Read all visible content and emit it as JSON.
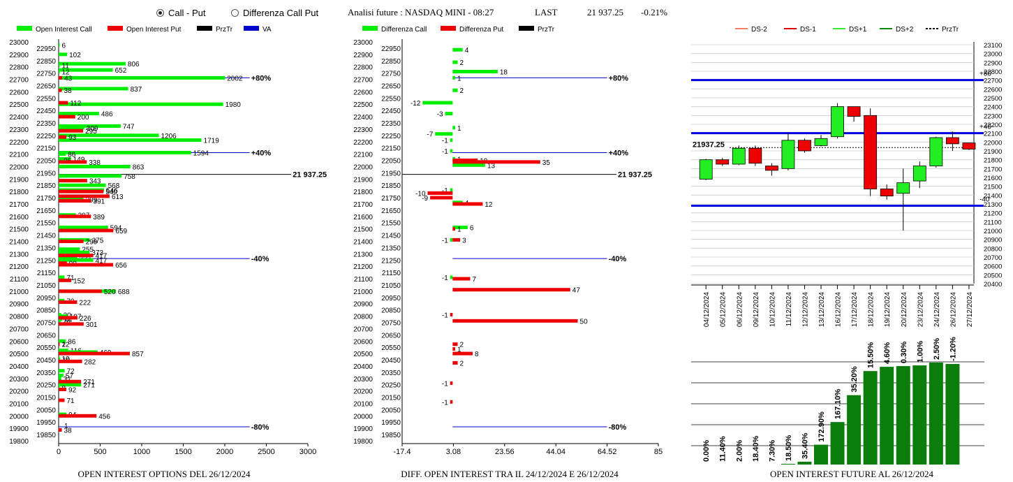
{
  "header": {
    "radio_call_put": "Call - Put",
    "radio_diff": "Differenza Call Put",
    "title": "Analisi future : NASDAQ MINI - 08:27",
    "last_label": "LAST",
    "last_value": "21 937.25",
    "change": "-0.21%"
  },
  "captions": {
    "left": "OPEN INTEREST OPTIONS DEL 26/12/2024",
    "middle": "DIFF. OPEN INTEREST TRA IL 24/12/2024 E 26/12/2024",
    "right": "OPEN INTEREST FUTURE AL 26/12/2024"
  },
  "colors": {
    "green": "#00ee00",
    "red": "#ee0000",
    "blue": "#0000cc",
    "darkgreen": "#0b7d0b"
  },
  "chart_data": [
    {
      "type": "bar",
      "orientation": "horizontal",
      "legend": [
        "Open Interest Call",
        "Open Interest Put",
        "PrzTr",
        "VA"
      ],
      "yticks": [
        "23000",
        "22900",
        "22800",
        "22700",
        "22600",
        "22500",
        "22400",
        "22300",
        "22200",
        "22100",
        "22000",
        "21900",
        "21800",
        "21700",
        "21600",
        "21500",
        "21400",
        "21300",
        "21200",
        "21100",
        "21000",
        "20900",
        "20800",
        "20700",
        "20600",
        "20500",
        "20400",
        "20300",
        "20200",
        "20100",
        "20000",
        "19900",
        "19800"
      ],
      "ylabels_mid": [
        "22950",
        "22850",
        "22750",
        "22650",
        "22550",
        "22450",
        "22350",
        "22250",
        "22150",
        "22050",
        "21950",
        "21850",
        "21750",
        "21650",
        "21550",
        "21450",
        "21350",
        "21250",
        "21150",
        "21050",
        "20950",
        "20850",
        "20750",
        "20650",
        "20550",
        "20450",
        "20350",
        "20250",
        "20150",
        "20050",
        "19950",
        "19850"
      ],
      "xticks": [
        "0",
        "500",
        "1000",
        "1500",
        "2000",
        "2500",
        "3000"
      ],
      "xlim": [
        0,
        3000
      ],
      "calls": [
        [
          22975,
          6
        ],
        [
          22900,
          102
        ],
        [
          22825,
          806
        ],
        [
          22812,
          11
        ],
        [
          22775,
          652
        ],
        [
          22762,
          12
        ],
        [
          22712,
          2002
        ],
        [
          22625,
          837
        ],
        [
          22500,
          1980
        ],
        [
          22425,
          486
        ],
        [
          22325,
          747
        ],
        [
          22312,
          309
        ],
        [
          22250,
          1206
        ],
        [
          22212,
          1719
        ],
        [
          22112,
          1594
        ],
        [
          22100,
          86
        ],
        [
          22062,
          149
        ],
        [
          22050,
          35
        ],
        [
          22000,
          863
        ],
        [
          21925,
          758
        ],
        [
          21850,
          568
        ],
        [
          21812,
          546
        ],
        [
          21737,
          299
        ],
        [
          21612,
          207
        ],
        [
          21512,
          594
        ],
        [
          21412,
          375
        ],
        [
          21337,
          255
        ],
        [
          21312,
          373
        ],
        [
          21262,
          222
        ],
        [
          21250,
          417
        ],
        [
          21112,
          71
        ],
        [
          21000,
          688
        ],
        [
          20925,
          70
        ],
        [
          20812,
          30
        ],
        [
          20800,
          107
        ],
        [
          20775,
          44
        ],
        [
          20762,
          24
        ],
        [
          20600,
          86
        ],
        [
          20575,
          2
        ],
        [
          20525,
          116
        ],
        [
          20512,
          469
        ],
        [
          20462,
          10
        ],
        [
          20450,
          18
        ],
        [
          20362,
          72
        ],
        [
          20325,
          57
        ],
        [
          20300,
          31
        ],
        [
          20262,
          6
        ],
        [
          20250,
          271
        ],
        [
          20225,
          8
        ],
        [
          20012,
          94
        ]
      ],
      "puts": [
        [
          22712,
          43
        ],
        [
          22612,
          38
        ],
        [
          22512,
          112
        ],
        [
          22400,
          200
        ],
        [
          22287,
          295
        ],
        [
          22237,
          93
        ],
        [
          22037,
          338
        ],
        [
          21887,
          343
        ],
        [
          21800,
          540
        ],
        [
          21762,
          613
        ],
        [
          21725,
          391
        ],
        [
          21600,
          389
        ],
        [
          21487,
          659
        ],
        [
          21400,
          299
        ],
        [
          21287,
          417
        ],
        [
          21225,
          99
        ],
        [
          21212,
          656
        ],
        [
          21087,
          152
        ],
        [
          21000,
          520
        ],
        [
          20912,
          222
        ],
        [
          20787,
          226
        ],
        [
          20737,
          301
        ],
        [
          20575,
          12
        ],
        [
          20500,
          857
        ],
        [
          20437,
          282
        ],
        [
          20275,
          271
        ],
        [
          20212,
          92
        ],
        [
          20125,
          71
        ],
        [
          20000,
          456
        ],
        [
          19887,
          38
        ]
      ],
      "lines": [
        {
          "y": 22712,
          "label": "+80%",
          "x": 2300
        },
        {
          "y": 22112,
          "label": "+40%",
          "x": 2300
        },
        {
          "y": 21937.25,
          "label": "21 937.25",
          "x": 2800
        },
        {
          "y": 21262,
          "label": "-40%",
          "x": 2300
        },
        {
          "y": 19912,
          "label": "-80%",
          "x": 2300
        }
      ],
      "extra_labels": [
        [
          19912,
          "1"
        ]
      ]
    },
    {
      "type": "bar",
      "orientation": "horizontal",
      "legend": [
        "Differenza Call",
        "Differenza Put",
        "PrzTr"
      ],
      "xticks": [
        "-17.4",
        "3.08",
        "23.56",
        "44.04",
        "64.52",
        "85"
      ],
      "xlim": [
        -17.4,
        85
      ],
      "calls": [
        [
          22937,
          4
        ],
        [
          22837,
          2
        ],
        [
          22762,
          18
        ],
        [
          22712,
          1
        ],
        [
          22612,
          2
        ],
        [
          22512,
          -12
        ],
        [
          22425,
          -3
        ],
        [
          22312,
          1
        ],
        [
          22262,
          -7
        ],
        [
          22212,
          -1
        ],
        [
          22125,
          -1
        ],
        [
          22062,
          1
        ],
        [
          22012,
          13
        ],
        [
          21812,
          -1
        ],
        [
          21712,
          4
        ],
        [
          21512,
          6
        ],
        [
          21412,
          -1
        ],
        [
          21112,
          -1
        ]
      ],
      "puts": [
        [
          22050,
          10
        ],
        [
          22037,
          35
        ],
        [
          21787,
          -10
        ],
        [
          21750,
          -9
        ],
        [
          21700,
          12
        ],
        [
          21500,
          1
        ],
        [
          21412,
          3
        ],
        [
          21100,
          7
        ],
        [
          21012,
          47
        ],
        [
          20812,
          -1
        ],
        [
          20762,
          50
        ],
        [
          20575,
          2
        ],
        [
          20537,
          1
        ],
        [
          20500,
          8
        ],
        [
          20425,
          2
        ],
        [
          20262,
          -1
        ],
        [
          20112,
          -1
        ]
      ],
      "lines": [
        {
          "y": 22712,
          "label": "+80%",
          "x": 64.52
        },
        {
          "y": 22112,
          "label": "+40%",
          "x": 64.52
        },
        {
          "y": 21937.25,
          "label": "21 937.25",
          "x": 85
        },
        {
          "y": 21262,
          "label": "-40%",
          "x": 64.52
        },
        {
          "y": 19912,
          "label": "-80%",
          "x": 64.52
        }
      ]
    },
    {
      "type": "candlestick",
      "legend": [
        "DS-2",
        "DS-1",
        "DS+1",
        "DS+2",
        "PrzTr"
      ],
      "yticks": [
        "23100",
        "23000",
        "22900",
        "22800",
        "22700",
        "22600",
        "22500",
        "22400",
        "22300",
        "22200",
        "22100",
        "22000",
        "21900",
        "21800",
        "21700",
        "21600",
        "21500",
        "21400",
        "21300",
        "21200",
        "21100",
        "21000",
        "20900",
        "20800",
        "20700",
        "20600",
        "20500",
        "20400"
      ],
      "ylim": [
        20400,
        23100
      ],
      "dates": [
        "04/12/2024",
        "05/12/2024",
        "06/12/2024",
        "09/12/2024",
        "10/12/2024",
        "11/12/2024",
        "12/12/2024",
        "13/12/2024",
        "16/12/2024",
        "17/12/2024",
        "18/12/2024",
        "19/12/2024",
        "20/12/2024",
        "23/12/2024",
        "24/12/2024",
        "26/12/2024",
        "27/12/2024"
      ],
      "candles": [
        [
          21580,
          21800,
          21810,
          21570
        ],
        [
          21800,
          21750,
          21820,
          21730
        ],
        [
          21750,
          21930,
          21960,
          21740
        ],
        [
          21930,
          21760,
          21960,
          21730
        ],
        [
          21730,
          21680,
          21760,
          21620
        ],
        [
          21700,
          22020,
          22100,
          21680
        ],
        [
          22020,
          21900,
          22040,
          21880
        ],
        [
          21960,
          22040,
          22080,
          21950
        ],
        [
          22060,
          22400,
          22440,
          22040
        ],
        [
          22400,
          22290,
          22400,
          22230
        ],
        [
          22300,
          21470,
          22380,
          21390
        ],
        [
          21470,
          21390,
          21520,
          21350
        ],
        [
          21420,
          21540,
          21700,
          21000
        ],
        [
          21560,
          21730,
          21780,
          21480
        ],
        [
          21730,
          22050,
          22060,
          21710
        ],
        [
          22050,
          21980,
          22120,
          21900
        ],
        [
          21990,
          21920,
          21990,
          21910
        ]
      ],
      "last_label": "21937.25",
      "last": 21937.25,
      "hlines": [
        {
          "y": 22700,
          "label": "+80"
        },
        {
          "y": 22100,
          "label": "+40"
        },
        {
          "y": 21280,
          "label": "-40"
        }
      ]
    },
    {
      "type": "bar",
      "categories": [
        "04/12/2024",
        "05/12/2024",
        "06/12/2024",
        "09/12/2024",
        "10/12/2024",
        "11/12/2024",
        "12/12/2024",
        "13/12/2024",
        "16/12/2024",
        "17/12/2024",
        "18/12/2024",
        "19/12/2024",
        "20/12/2024",
        "23/12/2024",
        "24/12/2024",
        "26/12/2024",
        "27/12/2024"
      ],
      "labels": [
        "0.00%",
        "11.40%",
        "2.00%",
        "18.40%",
        "7.30%",
        "18.50%",
        "35.40%",
        "172.90%",
        "167.10%",
        "35.20%",
        "15.50%",
        "4.60%",
        "0.30%",
        "1.00%",
        "2.50%",
        "-1.20%"
      ],
      "values": [
        0,
        0,
        0,
        0,
        0,
        1,
        4,
        28,
        60,
        98,
        132,
        138,
        139,
        140,
        144,
        142
      ]
    }
  ]
}
